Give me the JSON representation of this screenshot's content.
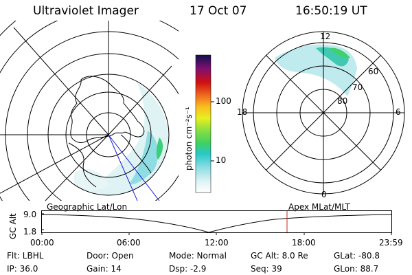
{
  "header": {
    "instrument": "Ultraviolet Imager",
    "date": "17 Oct 07",
    "time": "16:50:19 UT"
  },
  "colorbar": {
    "unit_label": "photon cm⁻²s⁻¹",
    "ticks": [
      "100",
      "10"
    ]
  },
  "polar_plot": {
    "mlt_labels": {
      "top": "12",
      "left": "18",
      "right": "6",
      "bottom": "0"
    },
    "mlat_labels": [
      "60",
      "70",
      "80"
    ]
  },
  "timeline": {
    "ylabel": "GC Alt",
    "y_values": [
      "9.0",
      "1.8"
    ],
    "left_title": "Geographic Lat/Lon",
    "right_title": "Apex MLat/MLT",
    "x_ticks": [
      "00:00",
      "06:00",
      "12:00",
      "18:00",
      "23:59"
    ],
    "marker_color": "#d02020"
  },
  "status": {
    "filter": "Flt: LBHL",
    "ip": "IP: 36.0",
    "door": "Door: Open",
    "gain": "Gain: 14",
    "mode": "Mode: Normal",
    "dsp": "Dsp:   -2.9",
    "gc_alt": "GC Alt: 8.0 Re",
    "seq": "Seq: 39",
    "glat": "GLat: -80.8",
    "glon": "GLon:  88.7"
  }
}
